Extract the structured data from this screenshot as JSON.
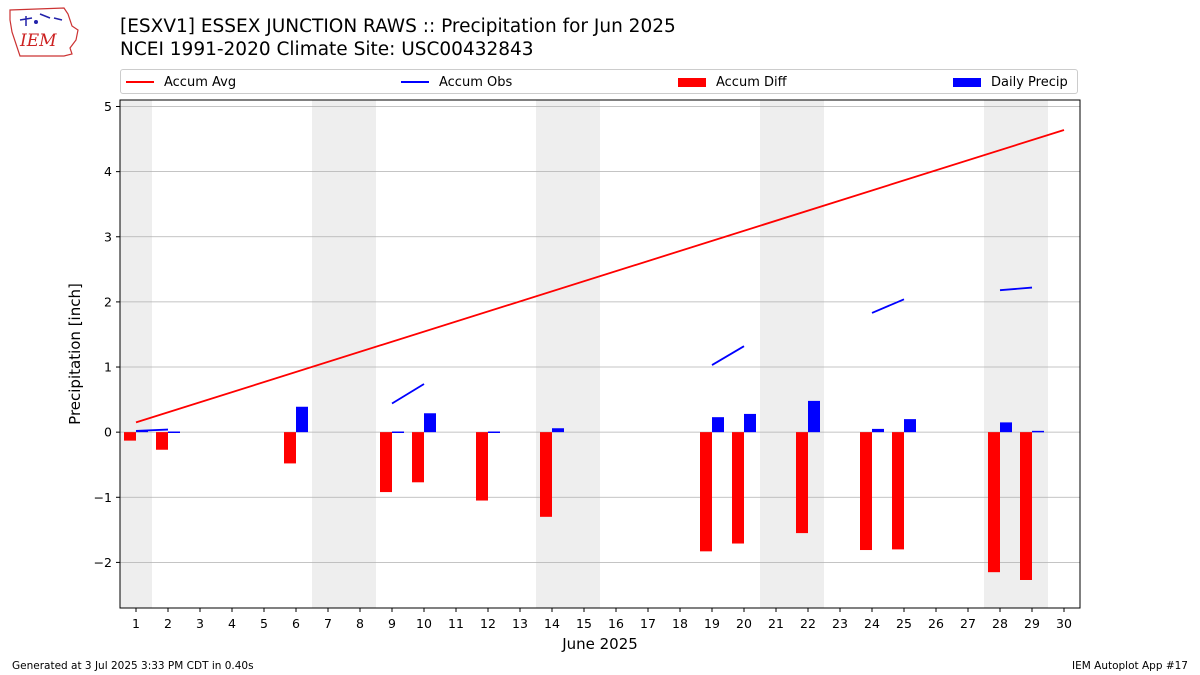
{
  "header": {
    "logo_text": "IEM",
    "title_line1": "[ESXV1] ESSEX JUNCTION RAWS :: Precipitation for Jun 2025",
    "title_line2": "NCEI 1991-2020 Climate Site: USC00432843"
  },
  "legend": {
    "placement": "top",
    "items": [
      {
        "label": "Accum Avg",
        "kind": "line",
        "color": "#ff0000"
      },
      {
        "label": "Accum Obs",
        "kind": "line",
        "color": "#0000ff"
      },
      {
        "label": "Accum Diff",
        "kind": "bar",
        "color": "#ff0000"
      },
      {
        "label": "Daily Precip",
        "kind": "bar",
        "color": "#0000ff"
      }
    ]
  },
  "footer": {
    "left": "Generated at 3 Jul 2025 3:33 PM CDT in 0.40s",
    "right": "IEM Autoplot App #17"
  },
  "chart_data": {
    "type": "bar",
    "title": "[ESXV1] ESSEX JUNCTION RAWS :: Precipitation for Jun 2025",
    "subtitle": "NCEI 1991-2020 Climate Site: USC00432843",
    "xlabel": "June 2025",
    "ylabel": "Precipitation [inch]",
    "xlim": [
      0.5,
      30.5
    ],
    "ylim": [
      -2.7,
      5.1
    ],
    "x_ticks": [
      1,
      2,
      3,
      4,
      5,
      6,
      7,
      8,
      9,
      10,
      11,
      12,
      13,
      14,
      15,
      16,
      17,
      18,
      19,
      20,
      21,
      22,
      23,
      24,
      25,
      26,
      27,
      28,
      29,
      30
    ],
    "y_ticks": [
      -2,
      -1,
      0,
      1,
      2,
      3,
      4,
      5
    ],
    "grid": "horizontal",
    "weekend_shading": [
      [
        0.5,
        1.5
      ],
      [
        6.5,
        8.5
      ],
      [
        13.5,
        15.5
      ],
      [
        20.5,
        22.5
      ],
      [
        27.5,
        29.5
      ]
    ],
    "colors": {
      "avg": "#ff0000",
      "obs": "#0000ff",
      "diff": "#ff0000",
      "daily": "#0000ff",
      "shade": "#eeeeee",
      "grid": "#b0b0b0"
    },
    "series": [
      {
        "name": "Accum Avg",
        "type": "line",
        "x": [
          1,
          30
        ],
        "y": [
          0.15,
          4.64
        ]
      },
      {
        "name": "Accum Obs",
        "type": "segments",
        "segments": [
          {
            "x": [
              1,
              2
            ],
            "y": [
              0.02,
              0.04
            ]
          },
          {
            "x": [
              9,
              10
            ],
            "y": [
              0.44,
              0.74
            ]
          },
          {
            "x": [
              19,
              20
            ],
            "y": [
              1.03,
              1.32
            ]
          },
          {
            "x": [
              24,
              25
            ],
            "y": [
              1.83,
              2.04
            ]
          },
          {
            "x": [
              28,
              29
            ],
            "y": [
              2.18,
              2.22
            ]
          }
        ]
      },
      {
        "name": "Accum Diff",
        "type": "bar",
        "x": [
          1,
          2,
          6,
          9,
          10,
          12,
          14,
          19,
          20,
          22,
          24,
          25,
          28,
          29
        ],
        "y": [
          -0.13,
          -0.27,
          -0.48,
          -0.92,
          -0.77,
          -1.05,
          -1.3,
          -1.83,
          -1.71,
          -1.55,
          -1.81,
          -1.8,
          -2.15,
          -2.27
        ]
      },
      {
        "name": "Daily Precip",
        "type": "bar",
        "x": [
          1,
          2,
          6,
          9,
          10,
          12,
          14,
          19,
          20,
          22,
          24,
          25,
          28,
          29
        ],
        "y": [
          0.03,
          0.01,
          0.39,
          0.01,
          0.29,
          0.01,
          0.06,
          0.23,
          0.28,
          0.48,
          0.05,
          0.2,
          0.15,
          0.02
        ]
      }
    ]
  }
}
